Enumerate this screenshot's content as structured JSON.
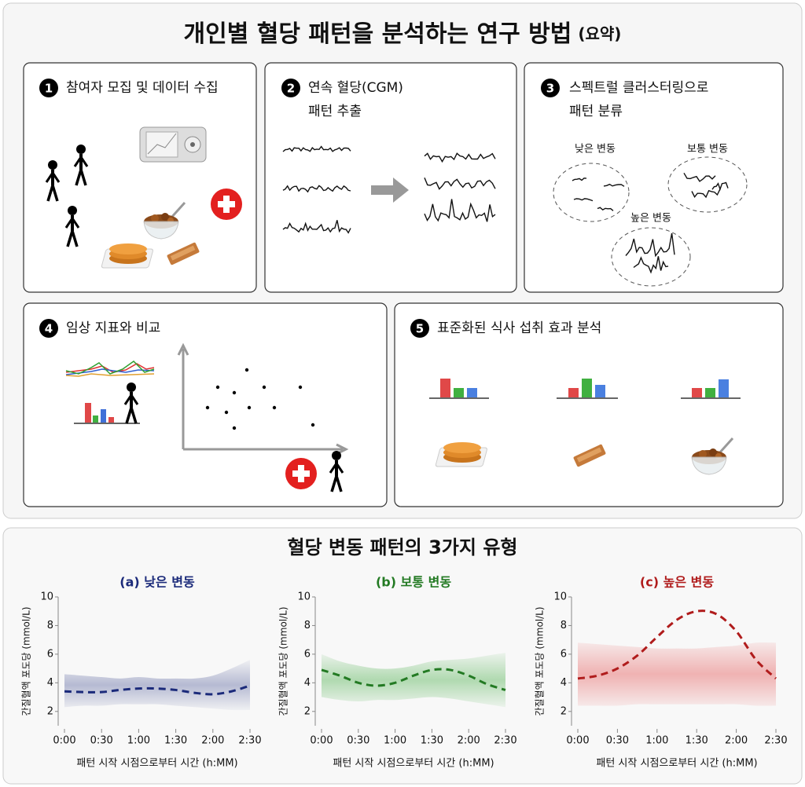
{
  "header": {
    "title": "개인별 혈당 패턴을 분석하는 연구 방법",
    "suffix": "(요약)"
  },
  "steps": [
    {
      "number": 1,
      "lines": [
        "참여자 모집 및 데이터 수집"
      ]
    },
    {
      "number": 2,
      "lines": [
        "연속 혈당(CGM)",
        "패턴 추출"
      ]
    },
    {
      "number": 3,
      "lines": [
        "스펙트럴 클러스터링으로",
        "패턴 분류"
      ],
      "clusters": [
        "낮은 변동",
        "보통 변동",
        "높은 변동"
      ]
    },
    {
      "number": 4,
      "lines": [
        "임상 지표와 비교"
      ]
    },
    {
      "number": 5,
      "lines": [
        "표준화된 식사 섭취 효과 분석"
      ]
    }
  ],
  "section": {
    "title": "혈당 변동 패턴의 3가지 유형"
  },
  "chart_data": [
    {
      "type": "line",
      "title": "(a) 낮은 변동",
      "x": [
        0,
        15,
        30,
        45,
        60,
        75,
        90,
        105,
        120,
        135,
        150
      ],
      "xlim": [
        0,
        150
      ],
      "xticks": [
        {
          "value": 0,
          "label": "0:00"
        },
        {
          "value": 30,
          "label": "0:30"
        },
        {
          "value": 60,
          "label": "1:00"
        },
        {
          "value": 90,
          "label": "1:30"
        },
        {
          "value": 120,
          "label": "2:00"
        },
        {
          "value": 150,
          "label": "2:30"
        }
      ],
      "ylim": [
        1,
        10
      ],
      "yticks": [
        2,
        4,
        6,
        8,
        10
      ],
      "xlabel": "패턴 시작 시점으로부터 시간 (h:MM)",
      "ylabel": "간질혈액 포도당 (mmol/L)",
      "series": [
        {
          "color": "#1b2a7a",
          "dashed": true,
          "values": [
            3.4,
            3.35,
            3.35,
            3.5,
            3.6,
            3.6,
            3.5,
            3.3,
            3.2,
            3.4,
            3.8
          ],
          "lower": [
            2.3,
            2.4,
            2.4,
            2.5,
            2.5,
            2.5,
            2.4,
            2.3,
            2.2,
            2.1,
            2.1
          ],
          "upper": [
            4.6,
            4.5,
            4.4,
            4.3,
            4.4,
            4.3,
            4.3,
            4.3,
            4.5,
            5.0,
            5.6
          ]
        }
      ]
    },
    {
      "type": "line",
      "title": "(b) 보통 변동",
      "x": [
        0,
        15,
        30,
        45,
        60,
        75,
        90,
        105,
        120,
        135,
        150
      ],
      "xlim": [
        0,
        150
      ],
      "xticks": [
        {
          "value": 0,
          "label": "0:00"
        },
        {
          "value": 30,
          "label": "0:30"
        },
        {
          "value": 60,
          "label": "1:00"
        },
        {
          "value": 90,
          "label": "1:30"
        },
        {
          "value": 120,
          "label": "2:00"
        },
        {
          "value": 150,
          "label": "2:30"
        }
      ],
      "ylim": [
        1,
        10
      ],
      "yticks": [
        2,
        4,
        6,
        8,
        10
      ],
      "xlabel": "패턴 시작 시점으로부터 시간 (h:MM)",
      "ylabel": "간질혈액 포도당 (mmol/L)",
      "series": [
        {
          "color": "#237a23",
          "dashed": true,
          "values": [
            4.9,
            4.5,
            4.0,
            3.8,
            4.0,
            4.5,
            4.9,
            4.9,
            4.5,
            3.9,
            3.5
          ],
          "lower": [
            3.0,
            2.8,
            2.7,
            2.8,
            2.8,
            2.9,
            3.0,
            2.9,
            2.7,
            2.5,
            2.3
          ],
          "upper": [
            6.0,
            5.5,
            5.2,
            5.0,
            5.0,
            5.2,
            5.5,
            5.6,
            5.7,
            5.9,
            6.1
          ]
        }
      ]
    },
    {
      "type": "line",
      "title": "(c) 높은 변동",
      "x": [
        0,
        15,
        30,
        45,
        60,
        75,
        90,
        105,
        120,
        135,
        150
      ],
      "xlim": [
        0,
        150
      ],
      "xticks": [
        {
          "value": 0,
          "label": "0:00"
        },
        {
          "value": 30,
          "label": "0:30"
        },
        {
          "value": 60,
          "label": "1:00"
        },
        {
          "value": 90,
          "label": "1:30"
        },
        {
          "value": 120,
          "label": "2:00"
        },
        {
          "value": 150,
          "label": "2:30"
        }
      ],
      "ylim": [
        1,
        10
      ],
      "yticks": [
        2,
        4,
        6,
        8,
        10
      ],
      "xlabel": "패턴 시작 시점으로부터 시간 (h:MM)",
      "ylabel": "간질혈액 포도당 (mmol/L)",
      "series": [
        {
          "color": "#b01c1c",
          "dashed": true,
          "values": [
            4.3,
            4.5,
            5.0,
            5.9,
            7.2,
            8.4,
            9.0,
            8.8,
            7.6,
            5.6,
            4.3
          ],
          "lower": [
            2.4,
            2.4,
            2.4,
            2.5,
            2.5,
            2.5,
            2.5,
            2.5,
            2.5,
            2.4,
            2.4
          ],
          "upper": [
            6.8,
            6.7,
            6.6,
            6.5,
            6.4,
            6.4,
            6.4,
            6.5,
            6.6,
            6.8,
            6.8
          ]
        }
      ]
    }
  ]
}
